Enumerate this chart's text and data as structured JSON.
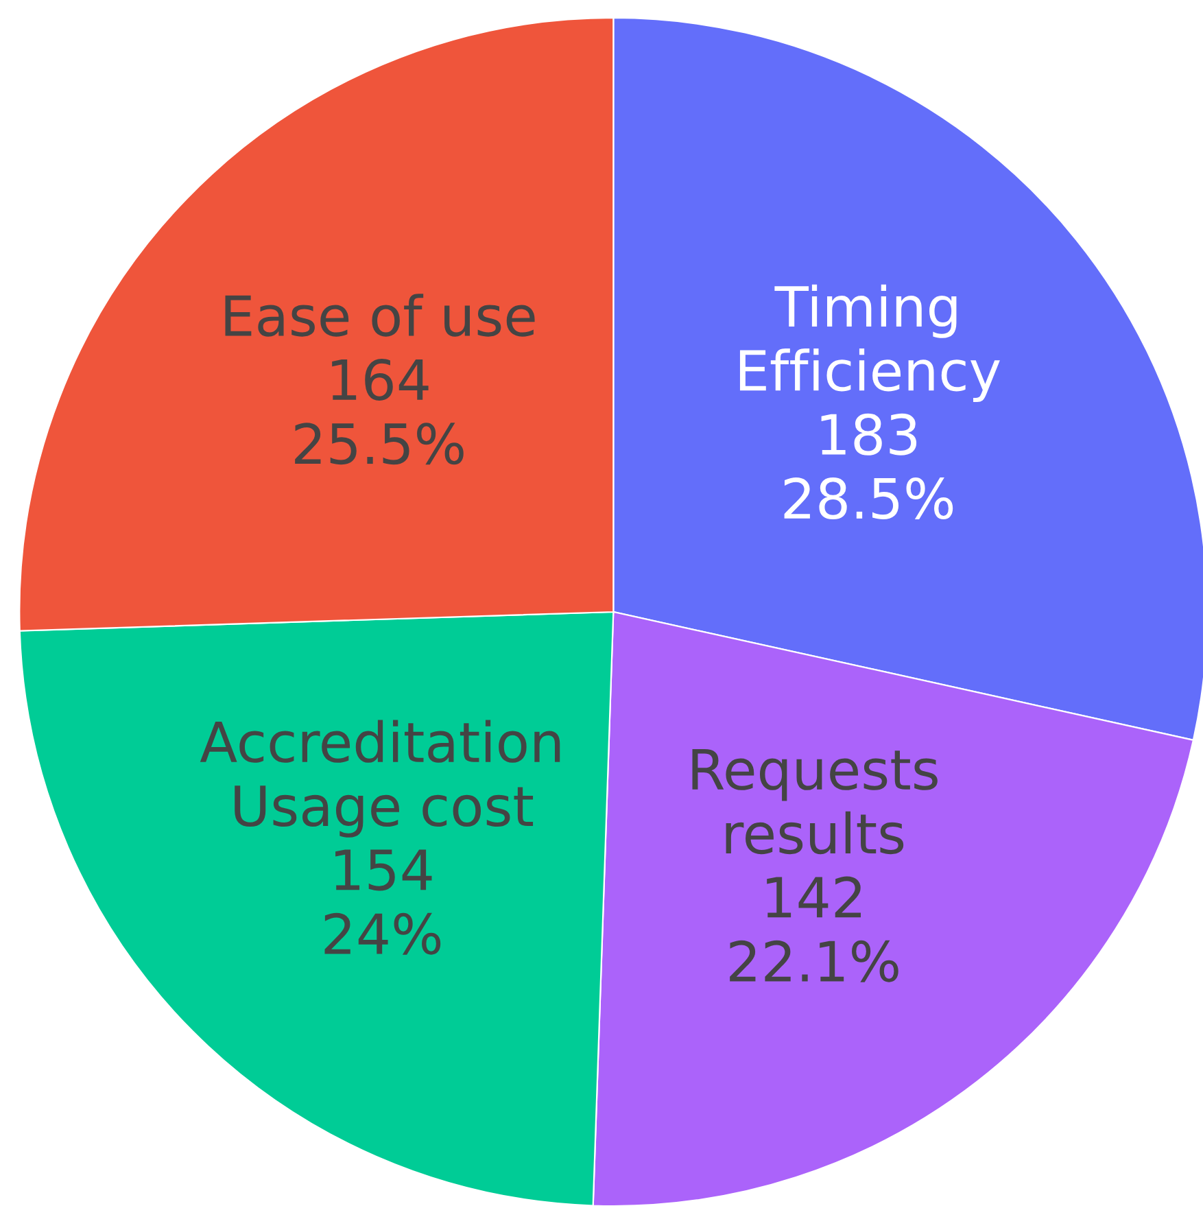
{
  "chart_data": {
    "type": "pie",
    "categories": [
      "Timing\nEfficiency",
      "Requests\nresults",
      "Accreditation\nUsage cost",
      "Ease of use"
    ],
    "values": [
      183,
      142,
      154,
      164
    ],
    "colors": [
      "#636efa",
      "#ab63fa",
      "#00cc96",
      "#ef553b"
    ],
    "value_labels": [
      "183\n28.5%",
      "142\n22.1%",
      "154\n24%",
      "164\n25.5%"
    ],
    "legend": false
  }
}
